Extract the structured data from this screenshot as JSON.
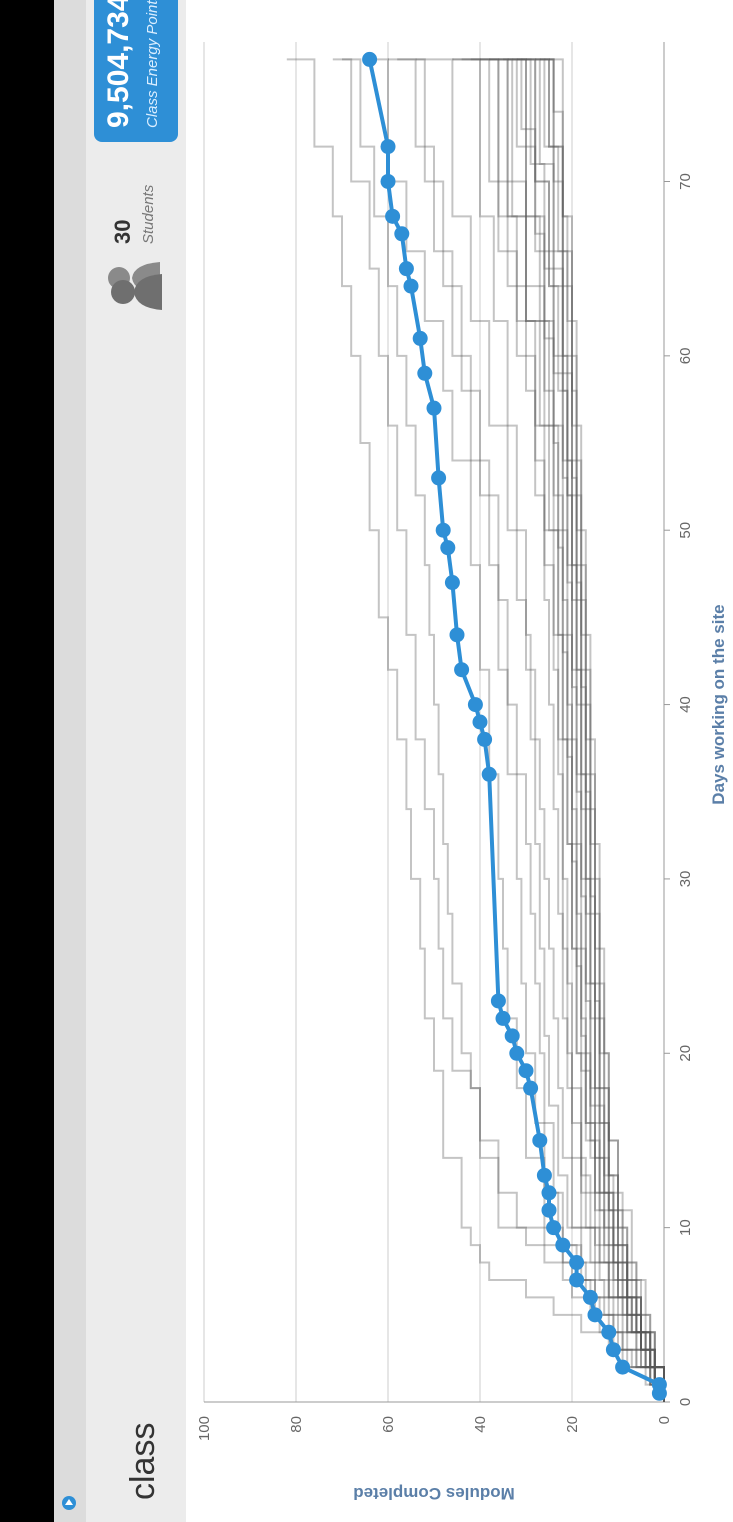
{
  "header": {
    "class_name": "class",
    "students_count": "30",
    "students_label": "Students",
    "energy_points": "9,504,734",
    "energy_label": "Class Energy Points"
  },
  "icons": {
    "nav": "play-circle-icon",
    "students": "students-icon"
  },
  "colors": {
    "accent": "#2e8fd6",
    "header_bg": "#ececec",
    "grid": "#cccccc",
    "class_lines": "#555555"
  },
  "chart_data": {
    "type": "line",
    "xlabel": "Days working on the site",
    "ylabel": "Modules Completed",
    "xlim": [
      0,
      78
    ],
    "ylim": [
      0,
      100
    ],
    "xticks": [
      0,
      10,
      20,
      30,
      40,
      50,
      60,
      70
    ],
    "yticks": [
      0,
      20,
      40,
      60,
      80,
      100
    ],
    "grid": true,
    "highlighted_series": {
      "x": [
        0.5,
        1,
        2,
        3,
        4,
        5,
        6,
        7,
        8,
        9,
        10,
        11,
        12,
        13,
        15,
        18,
        19,
        20,
        21,
        22,
        23,
        36,
        38,
        39,
        40,
        42,
        44,
        47,
        49,
        50,
        53,
        57,
        59,
        61,
        64,
        65,
        67,
        68,
        70,
        72,
        77
      ],
      "y": [
        1,
        1,
        9,
        11,
        12,
        15,
        16,
        19,
        19,
        22,
        24,
        25,
        25,
        26,
        27,
        29,
        30,
        32,
        33,
        35,
        36,
        38,
        39,
        40,
        41,
        44,
        45,
        46,
        47,
        48,
        49,
        50,
        52,
        53,
        55,
        56,
        57,
        59,
        60,
        60,
        64
      ]
    },
    "other_series": [
      {
        "x": [
          0,
          1,
          2,
          3,
          4,
          5,
          6,
          7,
          8,
          9,
          10,
          14,
          19,
          22,
          26,
          30,
          34,
          38,
          42,
          45,
          50,
          55,
          60,
          64,
          68,
          72,
          77
        ],
        "y": [
          0,
          3,
          8,
          12,
          18,
          24,
          30,
          38,
          40,
          42,
          44,
          48,
          50,
          52,
          53,
          55,
          56,
          58,
          60,
          62,
          64,
          66,
          68,
          70,
          72,
          76,
          82
        ]
      },
      {
        "x": [
          0,
          1,
          2,
          3,
          5,
          7,
          9,
          10,
          14,
          18,
          19,
          22,
          26,
          30,
          34,
          38,
          44,
          50,
          56,
          60,
          65,
          70,
          77
        ],
        "y": [
          0,
          2,
          6,
          10,
          16,
          22,
          30,
          36,
          40,
          42,
          46,
          48,
          49,
          50,
          52,
          54,
          56,
          58,
          60,
          62,
          64,
          68,
          72
        ]
      },
      {
        "x": [
          0,
          1,
          2,
          4,
          6,
          8,
          10,
          12,
          15,
          18,
          20,
          24,
          28,
          32,
          36,
          40,
          44,
          48,
          52,
          56,
          60,
          64,
          68,
          72,
          77
        ],
        "y": [
          0,
          4,
          9,
          14,
          20,
          26,
          32,
          36,
          40,
          42,
          44,
          46,
          47,
          48,
          49,
          50,
          51,
          52,
          54,
          56,
          58,
          60,
          63,
          66,
          70
        ]
      },
      {
        "x": [
          0,
          2,
          4,
          6,
          8,
          10,
          14,
          18,
          22,
          26,
          30,
          36,
          42,
          48,
          54,
          58,
          62,
          66,
          70,
          77
        ],
        "y": [
          0,
          5,
          11,
          17,
          22,
          26,
          30,
          32,
          34,
          35,
          36,
          38,
          40,
          42,
          46,
          48,
          52,
          56,
          60,
          64
        ]
      },
      {
        "x": [
          0,
          1,
          3,
          5,
          7,
          9,
          12,
          16,
          20,
          24,
          28,
          32,
          36,
          40,
          46,
          52,
          58,
          64,
          70,
          77
        ],
        "y": [
          0,
          3,
          8,
          13,
          18,
          22,
          24,
          26,
          27,
          28,
          29,
          30,
          32,
          34,
          36,
          40,
          44,
          48,
          52,
          58
        ]
      },
      {
        "x": [
          0,
          2,
          4,
          6,
          8,
          10,
          14,
          18,
          22,
          26,
          30,
          34,
          38,
          42,
          46,
          50,
          56,
          62,
          68,
          77
        ],
        "y": [
          0,
          4,
          8,
          12,
          16,
          20,
          22,
          23,
          24,
          25,
          26,
          27,
          28,
          30,
          32,
          34,
          38,
          42,
          46,
          54
        ]
      },
      {
        "x": [
          0,
          1,
          3,
          5,
          7,
          10,
          14,
          18,
          22,
          28,
          34,
          40,
          46,
          52,
          58,
          64,
          70,
          77
        ],
        "y": [
          0,
          2,
          6,
          10,
          14,
          18,
          20,
          21,
          22,
          23,
          24,
          25,
          26,
          28,
          30,
          34,
          38,
          46
        ]
      },
      {
        "x": [
          0,
          2,
          4,
          6,
          9,
          12,
          16,
          20,
          26,
          32,
          38,
          44,
          50,
          56,
          62,
          68,
          77
        ],
        "y": [
          0,
          3,
          7,
          11,
          15,
          18,
          20,
          21,
          22,
          22,
          23,
          24,
          26,
          28,
          32,
          36,
          44
        ]
      },
      {
        "x": [
          0,
          1,
          2,
          4,
          6,
          8,
          10,
          14,
          20,
          26,
          32,
          38,
          44,
          50,
          56,
          62,
          68,
          77
        ],
        "y": [
          0,
          2,
          5,
          9,
          12,
          15,
          17,
          18,
          19,
          20,
          21,
          22,
          23,
          24,
          26,
          30,
          34,
          40
        ]
      },
      {
        "x": [
          0,
          2,
          4,
          6,
          8,
          12,
          16,
          22,
          28,
          34,
          40,
          46,
          52,
          58,
          64,
          70,
          77
        ],
        "y": [
          0,
          3,
          6,
          9,
          12,
          15,
          17,
          18,
          19,
          20,
          21,
          22,
          24,
          26,
          30,
          34,
          38
        ]
      },
      {
        "x": [
          0,
          1,
          3,
          5,
          8,
          11,
          15,
          20,
          26,
          32,
          38,
          44,
          50,
          56,
          62,
          68,
          77
        ],
        "y": [
          0,
          2,
          5,
          8,
          11,
          14,
          16,
          17,
          18,
          19,
          20,
          21,
          22,
          24,
          26,
          30,
          34
        ]
      },
      {
        "x": [
          0,
          2,
          4,
          7,
          10,
          14,
          18,
          24,
          30,
          36,
          42,
          48,
          54,
          60,
          66,
          72,
          77
        ],
        "y": [
          0,
          3,
          6,
          10,
          13,
          15,
          16,
          17,
          18,
          19,
          20,
          21,
          22,
          24,
          28,
          32,
          36
        ]
      },
      {
        "x": [
          0,
          1,
          3,
          6,
          9,
          12,
          16,
          22,
          28,
          34,
          40,
          46,
          52,
          58,
          64,
          70,
          77
        ],
        "y": [
          0,
          2,
          5,
          8,
          11,
          13,
          15,
          16,
          17,
          18,
          19,
          20,
          21,
          22,
          25,
          28,
          32
        ]
      },
      {
        "x": [
          0,
          2,
          5,
          8,
          11,
          14,
          18,
          24,
          30,
          36,
          42,
          48,
          54,
          60,
          66,
          72,
          77
        ],
        "y": [
          0,
          3,
          6,
          9,
          12,
          14,
          15,
          16,
          17,
          18,
          19,
          20,
          21,
          22,
          24,
          26,
          30
        ]
      },
      {
        "x": [
          0,
          1,
          4,
          7,
          10,
          13,
          18,
          24,
          30,
          36,
          42,
          48,
          54,
          60,
          66,
          72,
          77
        ],
        "y": [
          0,
          2,
          5,
          8,
          10,
          12,
          14,
          15,
          16,
          17,
          18,
          19,
          20,
          21,
          22,
          25,
          28
        ]
      },
      {
        "x": [
          0,
          2,
          4,
          6,
          8,
          10,
          13,
          18,
          24,
          30,
          36,
          42,
          48,
          54,
          60,
          66,
          77
        ],
        "y": [
          0,
          4,
          8,
          12,
          14,
          16,
          18,
          20,
          21,
          22,
          23,
          24,
          26,
          28,
          32,
          36,
          42
        ]
      },
      {
        "x": [
          0,
          1,
          2,
          3,
          5,
          7,
          9,
          12,
          16,
          20,
          24,
          30,
          36,
          42,
          48,
          54,
          60,
          66,
          72,
          77
        ],
        "y": [
          0,
          3,
          7,
          11,
          15,
          19,
          23,
          26,
          28,
          30,
          31,
          32,
          34,
          36,
          38,
          42,
          46,
          50,
          54,
          60
        ]
      },
      {
        "x": [
          0,
          2,
          4,
          6,
          8,
          11,
          15,
          20,
          26,
          32,
          38,
          44,
          50,
          56,
          62,
          68,
          77
        ],
        "y": [
          0,
          3,
          6,
          10,
          13,
          15,
          17,
          19,
          20,
          21,
          22,
          23,
          25,
          27,
          30,
          33,
          38
        ]
      },
      {
        "x": [
          0,
          1,
          3,
          5,
          8,
          12,
          17,
          23,
          29,
          35,
          41,
          47,
          53,
          59,
          65,
          71,
          77
        ],
        "y": [
          0,
          2,
          5,
          8,
          11,
          13,
          14,
          15,
          16,
          17,
          18,
          19,
          20,
          22,
          24,
          27,
          31
        ]
      },
      {
        "x": [
          0,
          2,
          5,
          8,
          12,
          16,
          22,
          28,
          34,
          40,
          46,
          52,
          58,
          64,
          70,
          77
        ],
        "y": [
          0,
          3,
          6,
          9,
          12,
          13,
          14,
          15,
          16,
          17,
          18,
          19,
          20,
          22,
          24,
          27
        ]
      },
      {
        "x": [
          0,
          1,
          2,
          4,
          6,
          9,
          12,
          16,
          21,
          26,
          32,
          38,
          44,
          50,
          56,
          62,
          68,
          77
        ],
        "y": [
          0,
          2,
          4,
          7,
          10,
          13,
          15,
          17,
          18,
          19,
          20,
          21,
          22,
          23,
          25,
          27,
          30,
          35
        ]
      },
      {
        "x": [
          0,
          2,
          4,
          6,
          9,
          13,
          18,
          24,
          30,
          36,
          42,
          48,
          54,
          60,
          66,
          72,
          77
        ],
        "y": [
          0,
          2,
          5,
          8,
          11,
          13,
          15,
          16,
          17,
          18,
          19,
          20,
          21,
          22,
          23,
          25,
          27
        ]
      },
      {
        "x": [
          0,
          1,
          3,
          6,
          10,
          15,
          20,
          26,
          32,
          38,
          44,
          50,
          56,
          62,
          68,
          77
        ],
        "y": [
          0,
          2,
          5,
          8,
          10,
          12,
          13,
          14,
          15,
          16,
          17,
          18,
          19,
          20,
          22,
          25
        ]
      },
      {
        "x": [
          0,
          2,
          4,
          7,
          11,
          15,
          20,
          26,
          32,
          38,
          44,
          50,
          56,
          62,
          68,
          74,
          77
        ],
        "y": [
          0,
          2,
          4,
          7,
          10,
          12,
          14,
          15,
          16,
          17,
          18,
          19,
          20,
          21,
          22,
          24,
          26
        ]
      },
      {
        "x": [
          0,
          1,
          2,
          3,
          4,
          6,
          8,
          10,
          13,
          17,
          21,
          26,
          32,
          38,
          44,
          50,
          56,
          62,
          68,
          77
        ],
        "y": [
          0,
          3,
          6,
          9,
          12,
          15,
          18,
          21,
          23,
          25,
          26,
          27,
          28,
          29,
          30,
          32,
          34,
          37,
          40,
          46
        ]
      },
      {
        "x": [
          0,
          1,
          3,
          5,
          7,
          10,
          14,
          19,
          25,
          31,
          37,
          43,
          49,
          55,
          61,
          67,
          73,
          77
        ],
        "y": [
          0,
          2,
          5,
          8,
          11,
          14,
          16,
          18,
          19,
          20,
          21,
          22,
          23,
          24,
          26,
          28,
          31,
          34
        ]
      },
      {
        "x": [
          0,
          2,
          3,
          5,
          8,
          12,
          17,
          23,
          29,
          35,
          41,
          47,
          53,
          59,
          65,
          71,
          77
        ],
        "y": [
          0,
          3,
          6,
          9,
          12,
          14,
          16,
          17,
          18,
          19,
          20,
          21,
          22,
          24,
          26,
          29,
          33
        ]
      },
      {
        "x": [
          0,
          1,
          2,
          4,
          7,
          11,
          16,
          22,
          28,
          34,
          40,
          46,
          52,
          58,
          64,
          70,
          77
        ],
        "y": [
          0,
          2,
          4,
          7,
          10,
          12,
          14,
          15,
          16,
          17,
          18,
          19,
          21,
          23,
          25,
          28,
          32
        ]
      },
      {
        "x": [
          0,
          1,
          3,
          6,
          9,
          13,
          18,
          24,
          30,
          36,
          42,
          48,
          54,
          60,
          66,
          72,
          77
        ],
        "y": [
          0,
          2,
          5,
          8,
          10,
          12,
          13,
          14,
          15,
          16,
          17,
          18,
          19,
          20,
          22,
          24,
          28
        ]
      }
    ]
  }
}
